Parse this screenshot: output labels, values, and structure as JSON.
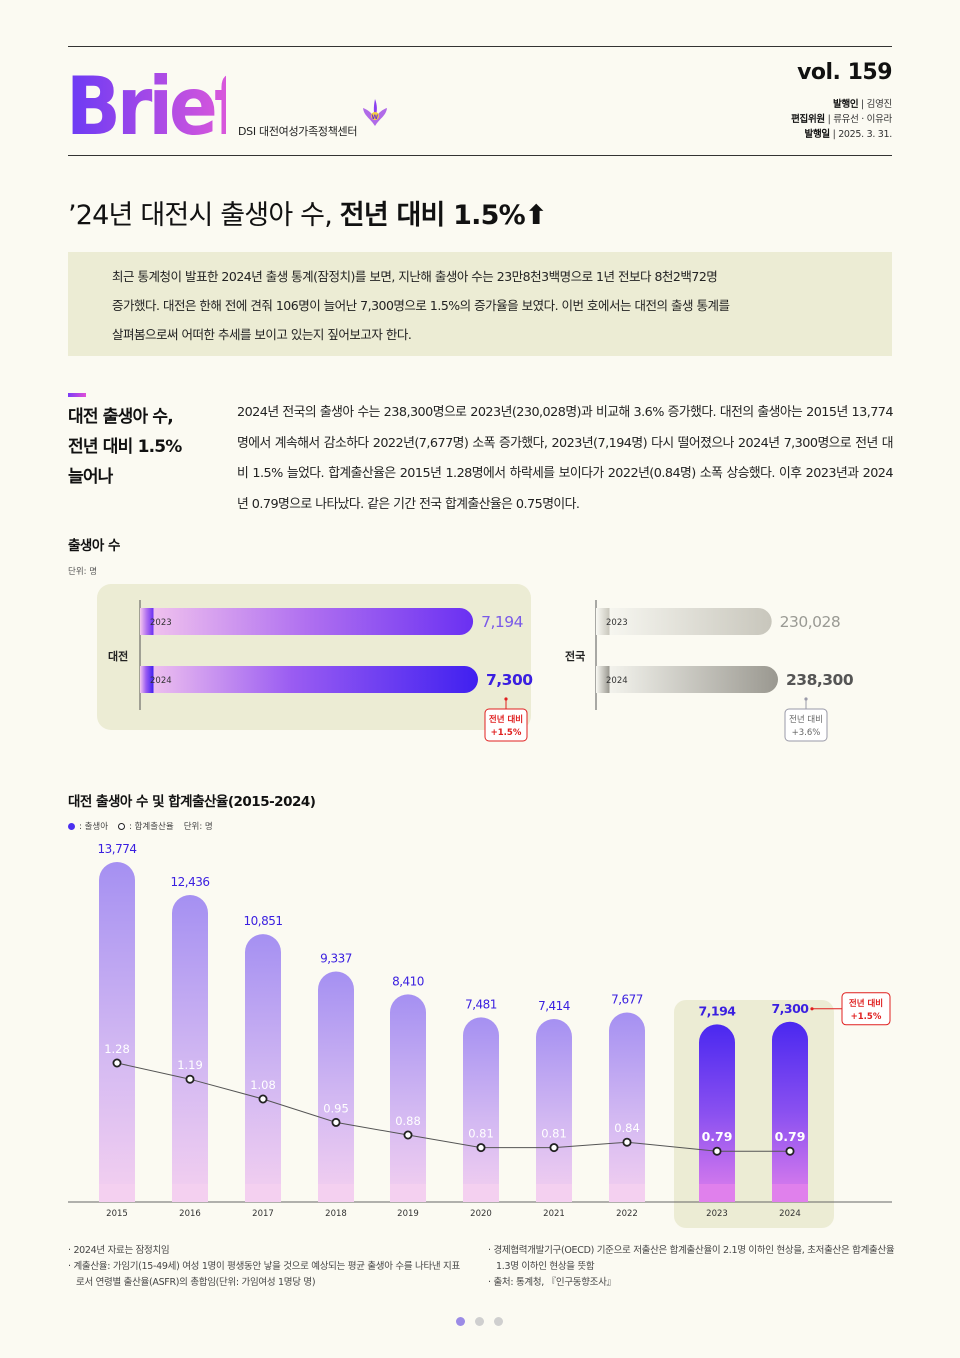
{
  "header": {
    "logo": "Brief",
    "organization": "DSI 대전여성가족정책센터",
    "volume": "vol. 159",
    "publisher_label": "발행인",
    "publisher": "김영진",
    "editors_label": "편집위원",
    "editors": "류유선 · 이유라",
    "date_label": "발행일",
    "date": "2025. 3. 31."
  },
  "title": {
    "regular": "’24년 대전시 출생아 수, ",
    "bold": "전년 대비 1.5%",
    "arrow": "⬆"
  },
  "summary": [
    "최근 통계청이 발표한 2024년 출생 통계(잠정치)를 보면, 지난해 출생아 수는 23만8천3백명으로 1년 전보다 8천2백72명",
    "증가했다. 대전은 한해 전에 견줘 106명이 늘어난 7,300명으로 1.5%의 증가율을 보였다. 이번 호에서는 대전의 출생 통계를",
    "살펴봄으로써 어떠한 추세를 보이고 있는지 짚어보고자 한다."
  ],
  "section": {
    "title_lines": [
      "대전 출생아 수,",
      "전년 대비 1.5%",
      "늘어나"
    ],
    "body": "2024년 전국의 출생아 수는 238,300명으로 2023년(230,028명)과 비교해 3.6% 증가했다. 대전의 출생아는 2015년 13,774명에서 계속해서 감소하다 2022년(7,677명) 소폭 증가했다, 2023년(7,194명) 다시 떨어졌으나 2024년 7,300명으로 전년 대비 1.5% 늘었다. 합계출산율은 2015년 1.28명에서 하락세를 보이다가 2022년(0.84명) 소폭 상승했다. 이후 2023년과 2024년 0.79명으로 나타났다. 같은 기간 전국 합계출산율은 0.75명이다."
  },
  "chart1": {
    "title": "출생아 수",
    "unit": "단위: 명"
  },
  "chart2": {
    "title": "대전 출생아 수 및 합계출산율(2015-2024)",
    "legend_births": ": 출생아",
    "legend_rate": ": 합계출산율",
    "unit": "단위: 명"
  },
  "chart_data": [
    {
      "type": "bar",
      "orientation": "horizontal",
      "groups": [
        {
          "name": "대전",
          "categories": [
            "2023",
            "2024"
          ],
          "values": [
            7194,
            7300
          ],
          "labels": [
            "7,194",
            "7,300"
          ],
          "change_label": [
            "전년 대비",
            "+1.5%"
          ]
        },
        {
          "name": "전국",
          "categories": [
            "2023",
            "2024"
          ],
          "values": [
            230028,
            238300
          ],
          "labels": [
            "230,028",
            "238,300"
          ],
          "change_label": [
            "전년 대비",
            "+3.6%"
          ]
        }
      ]
    },
    {
      "type": "bar",
      "categories": [
        "2015",
        "2016",
        "2017",
        "2018",
        "2019",
        "2020",
        "2021",
        "2022",
        "2023",
        "2024"
      ],
      "series": [
        {
          "name": "출생아",
          "values": [
            13774,
            12436,
            10851,
            9337,
            8410,
            7481,
            7414,
            7677,
            7194,
            7300
          ],
          "labels": [
            "13,774",
            "12,436",
            "10,851",
            "9,337",
            "8,410",
            "7,481",
            "7,414",
            "7,677",
            "7,194",
            "7,300"
          ]
        },
        {
          "name": "합계출산율",
          "type": "line",
          "values": [
            1.28,
            1.19,
            1.08,
            0.95,
            0.88,
            0.81,
            0.81,
            0.84,
            0.79,
            0.79
          ],
          "labels": [
            "1.28",
            "1.19",
            "1.08",
            "0.95",
            "0.88",
            "0.81",
            "0.81",
            "0.84",
            "0.79",
            "0.79"
          ]
        }
      ],
      "highlight_categories": [
        "2023",
        "2024"
      ],
      "change_label": [
        "전년 대비",
        "+1.5%"
      ]
    }
  ],
  "notes_left": [
    "· 2024년 자료는 잠정치임",
    "· 계출산율: 가임기(15-49세) 여성 1명이 평생동안 낳을 것으로 예상되는 평균 출생아 수를 나타낸 지표로서 연령별 출산율(ASFR)의 총합임(단위: 가임여성 1명당 명)"
  ],
  "notes_right": [
    "· 경제협력개발기구(OECD) 기준으로 저출산은 합계출산율이 2.1명 이하인 현상을, 초저출산은 합계출산율 1.3명 이하인 현상을 뜻함",
    "· 출처: 통계청, 『인구동향조사』"
  ],
  "colors": {
    "accent": "#4a2ff0",
    "highlight_bg": "#ececd4",
    "red": "#e02020"
  }
}
